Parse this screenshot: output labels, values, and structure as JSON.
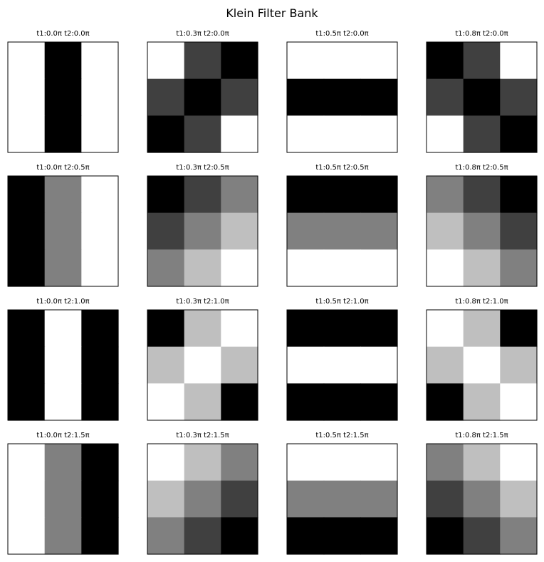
{
  "title": "Klein Filter Bank",
  "chart_data": {
    "type": "heatmap",
    "colormap": "gray",
    "value_range": [
      0,
      1
    ],
    "grid_layout": "4 rows x 4 columns",
    "panels": [
      {
        "title": "t1:0.0π t2:0.0π",
        "matrix": [
          [
            1,
            0,
            1
          ],
          [
            1,
            0,
            1
          ],
          [
            1,
            0,
            1
          ]
        ]
      },
      {
        "title": "t1:0.3π t2:0.0π",
        "matrix": [
          [
            1,
            0.25,
            0
          ],
          [
            0.25,
            0,
            0.25
          ],
          [
            0,
            0.25,
            1
          ]
        ]
      },
      {
        "title": "t1:0.5π t2:0.0π",
        "matrix": [
          [
            1,
            1,
            1
          ],
          [
            0,
            0,
            0
          ],
          [
            1,
            1,
            1
          ]
        ]
      },
      {
        "title": "t1:0.8π t2:0.0π",
        "matrix": [
          [
            0,
            0.25,
            1
          ],
          [
            0.25,
            0,
            0.25
          ],
          [
            1,
            0.25,
            0
          ]
        ]
      },
      {
        "title": "t1:0.0π t2:0.5π",
        "matrix": [
          [
            0,
            0.5,
            1
          ],
          [
            0,
            0.5,
            1
          ],
          [
            0,
            0.5,
            1
          ]
        ]
      },
      {
        "title": "t1:0.3π t2:0.5π",
        "matrix": [
          [
            0,
            0.25,
            0.5
          ],
          [
            0.25,
            0.5,
            0.75
          ],
          [
            0.5,
            0.75,
            1
          ]
        ]
      },
      {
        "title": "t1:0.5π t2:0.5π",
        "matrix": [
          [
            0,
            0,
            0
          ],
          [
            0.5,
            0.5,
            0.5
          ],
          [
            1,
            1,
            1
          ]
        ]
      },
      {
        "title": "t1:0.8π t2:0.5π",
        "matrix": [
          [
            0.5,
            0.25,
            0
          ],
          [
            0.75,
            0.5,
            0.25
          ],
          [
            1,
            0.75,
            0.5
          ]
        ]
      },
      {
        "title": "t1:0.0π t2:1.0π",
        "matrix": [
          [
            0,
            1,
            0
          ],
          [
            0,
            1,
            0
          ],
          [
            0,
            1,
            0
          ]
        ]
      },
      {
        "title": "t1:0.3π t2:1.0π",
        "matrix": [
          [
            0,
            0.75,
            1
          ],
          [
            0.75,
            1,
            0.75
          ],
          [
            1,
            0.75,
            0
          ]
        ]
      },
      {
        "title": "t1:0.5π t2:1.0π",
        "matrix": [
          [
            0,
            0,
            0
          ],
          [
            1,
            1,
            1
          ],
          [
            0,
            0,
            0
          ]
        ]
      },
      {
        "title": "t1:0.8π t2:1.0π",
        "matrix": [
          [
            1,
            0.75,
            0
          ],
          [
            0.75,
            1,
            0.75
          ],
          [
            0,
            0.75,
            1
          ]
        ]
      },
      {
        "title": "t1:0.0π t2:1.5π",
        "matrix": [
          [
            1,
            0.5,
            0
          ],
          [
            1,
            0.5,
            0
          ],
          [
            1,
            0.5,
            0
          ]
        ]
      },
      {
        "title": "t1:0.3π t2:1.5π",
        "matrix": [
          [
            1,
            0.75,
            0.5
          ],
          [
            0.75,
            0.5,
            0.25
          ],
          [
            0.5,
            0.25,
            0
          ]
        ]
      },
      {
        "title": "t1:0.5π t2:1.5π",
        "matrix": [
          [
            1,
            1,
            1
          ],
          [
            0.5,
            0.5,
            0.5
          ],
          [
            0,
            0,
            0
          ]
        ]
      },
      {
        "title": "t1:0.8π t2:1.5π",
        "matrix": [
          [
            0.5,
            0.75,
            1
          ],
          [
            0.25,
            0.5,
            0.75
          ],
          [
            0,
            0.25,
            0.5
          ]
        ]
      }
    ]
  }
}
